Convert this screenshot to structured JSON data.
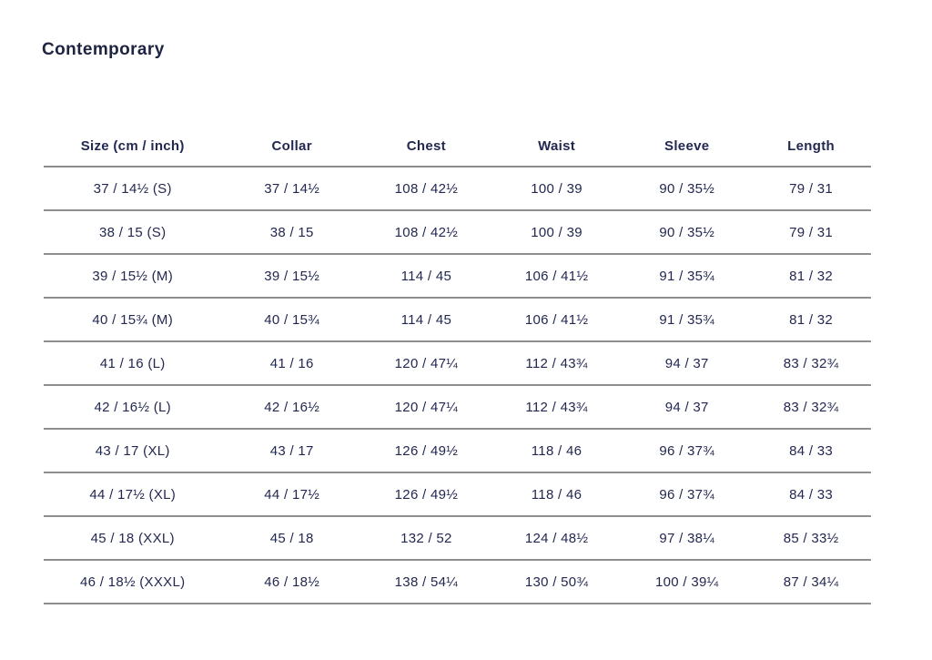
{
  "title": "Contemporary",
  "colors": {
    "text": "#20264a",
    "title": "#1e2342",
    "divider_line": "#8c8c8c",
    "background": "#ffffff"
  },
  "table": {
    "columns": [
      "Size (cm / inch)",
      "Collar",
      "Chest",
      "Waist",
      "Sleeve",
      "Length"
    ],
    "rows": [
      [
        "37 / 14½ (S)",
        "37 / 14½",
        "108 / 42½",
        "100 / 39",
        "90 / 35½",
        "79 / 31"
      ],
      [
        "38 / 15 (S)",
        "38 / 15",
        "108 / 42½",
        "100 / 39",
        "90 / 35½",
        "79 / 31"
      ],
      [
        "39 / 15½ (M)",
        "39 / 15½",
        "114 / 45",
        "106 / 41½",
        "91 / 35¾",
        "81 / 32"
      ],
      [
        "40 / 15¾ (M)",
        "40 / 15¾",
        "114 / 45",
        "106 / 41½",
        "91 / 35¾",
        "81 / 32"
      ],
      [
        "41 / 16 (L)",
        "41 / 16",
        "120 / 47¼",
        "112 / 43¾",
        "94 / 37",
        "83 / 32¾"
      ],
      [
        "42 / 16½ (L)",
        "42 / 16½",
        "120 / 47¼",
        "112 / 43¾",
        "94 / 37",
        "83 / 32¾"
      ],
      [
        "43 / 17 (XL)",
        "43 / 17",
        "126 / 49½",
        "118 / 46",
        "96 / 37¾",
        "84 / 33"
      ],
      [
        "44 / 17½ (XL)",
        "44 / 17½",
        "126 / 49½",
        "118 / 46",
        "96 / 37¾",
        "84 / 33"
      ],
      [
        "45 / 18 (XXL)",
        "45 / 18",
        "132 / 52",
        "124 / 48½",
        "97 / 38¼",
        "85 / 33½"
      ],
      [
        "46 / 18½ (XXXL)",
        "46 / 18½",
        "138 / 54¼",
        "130 / 50¾",
        "100 / 39¼",
        "87 / 34¼"
      ]
    ]
  },
  "chart_data": {
    "type": "table",
    "title": "Contemporary",
    "columns": [
      "Size (cm / inch)",
      "Collar",
      "Chest",
      "Waist",
      "Sleeve",
      "Length"
    ],
    "rows": [
      [
        "37 / 14½ (S)",
        "37 / 14½",
        "108 / 42½",
        "100 / 39",
        "90 / 35½",
        "79 / 31"
      ],
      [
        "38 / 15 (S)",
        "38 / 15",
        "108 / 42½",
        "100 / 39",
        "90 / 35½",
        "79 / 31"
      ],
      [
        "39 / 15½ (M)",
        "39 / 15½",
        "114 / 45",
        "106 / 41½",
        "91 / 35¾",
        "81 / 32"
      ],
      [
        "40 / 15¾ (M)",
        "40 / 15¾",
        "114 / 45",
        "106 / 41½",
        "91 / 35¾",
        "81 / 32"
      ],
      [
        "41 / 16 (L)",
        "41 / 16",
        "120 / 47¼",
        "112 / 43¾",
        "94 / 37",
        "83 / 32¾"
      ],
      [
        "42 / 16½ (L)",
        "42 / 16½",
        "120 / 47¼",
        "112 / 43¾",
        "94 / 37",
        "83 / 32¾"
      ],
      [
        "43 / 17 (XL)",
        "43 / 17",
        "126 / 49½",
        "118 / 46",
        "96 / 37¾",
        "84 / 33"
      ],
      [
        "44 / 17½ (XL)",
        "44 / 17½",
        "126 / 49½",
        "118 / 46",
        "96 / 37¾",
        "84 / 33"
      ],
      [
        "45 / 18 (XXL)",
        "45 / 18",
        "132 / 52",
        "124 / 48½",
        "97 / 38¼",
        "85 / 33½"
      ],
      [
        "46 / 18½ (XXXL)",
        "46 / 18½",
        "138 / 54¼",
        "130 / 50¾",
        "100 / 39¼",
        "87 / 34¼"
      ]
    ]
  }
}
